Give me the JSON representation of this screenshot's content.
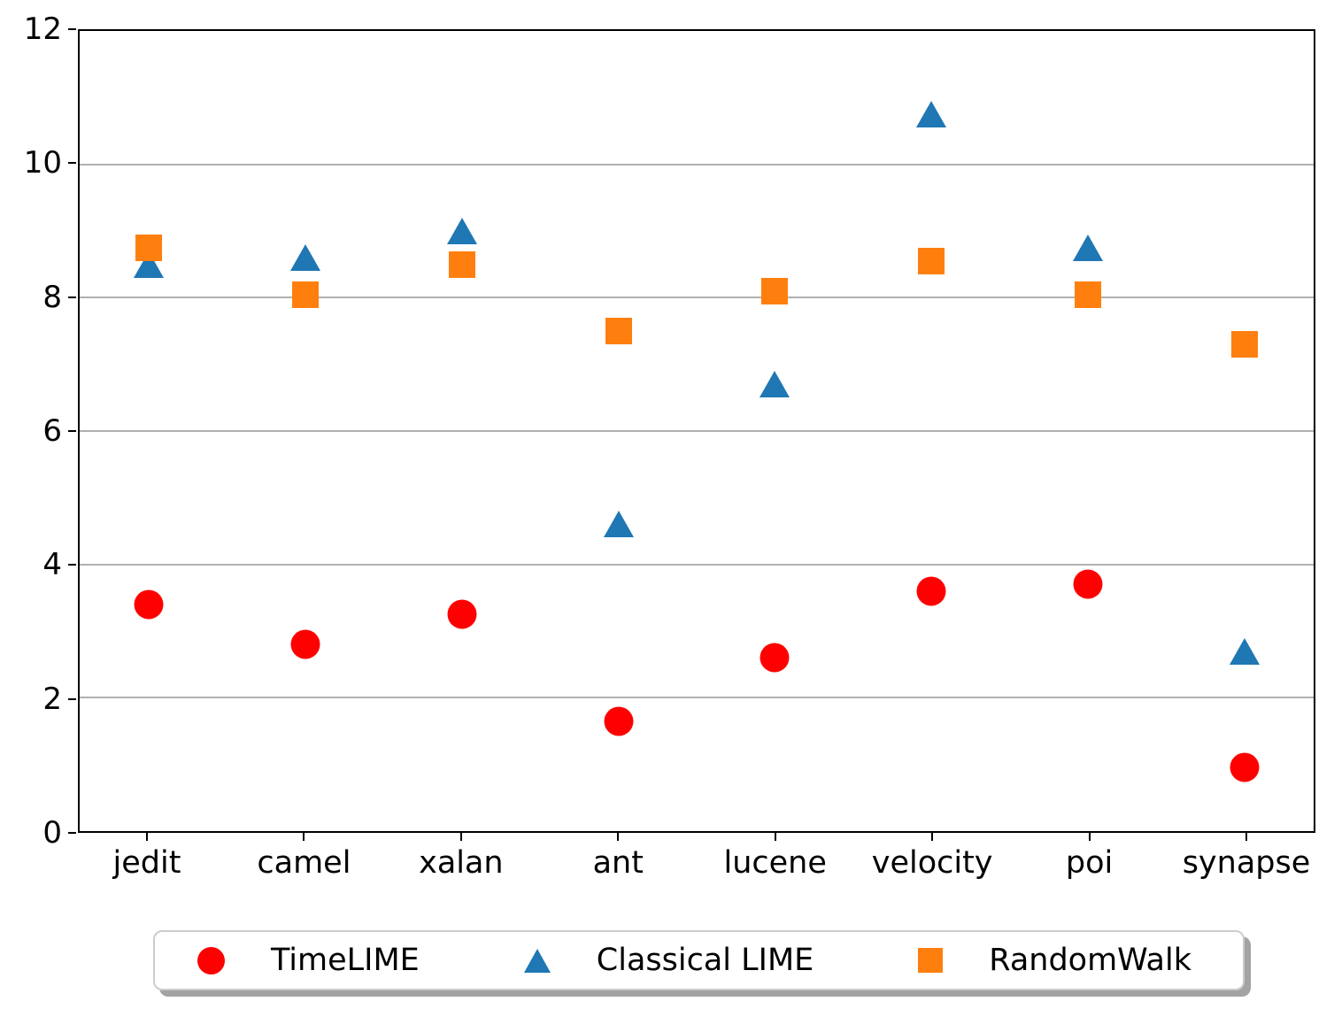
{
  "chart_data": {
    "type": "scatter",
    "title": "",
    "xlabel": "",
    "ylabel": "",
    "categories": [
      "jedit",
      "camel",
      "xalan",
      "ant",
      "lucene",
      "velocity",
      "poi",
      "synapse"
    ],
    "series": [
      {
        "name": "TimeLIME",
        "marker": "circle",
        "color": "#ff0000",
        "values": [
          3.4,
          2.8,
          3.25,
          1.65,
          2.6,
          3.6,
          3.7,
          0.95
        ]
      },
      {
        "name": "Classical LIME",
        "marker": "triangle",
        "color": "#1f77b4",
        "values": [
          8.5,
          8.6,
          9.0,
          4.6,
          6.7,
          10.75,
          8.75,
          2.7
        ]
      },
      {
        "name": "RandomWalk",
        "marker": "square",
        "color": "#ff7f0e",
        "values": [
          8.75,
          8.05,
          8.5,
          7.5,
          8.1,
          8.55,
          8.05,
          7.3
        ]
      }
    ],
    "ylim": [
      0,
      12
    ],
    "yticks": [
      "0",
      "2",
      "4",
      "6",
      "8",
      "10",
      "12"
    ],
    "grid": "horizontal-only",
    "grid_color": "#b0b0b0",
    "legend_position": "bottom-center",
    "legend_labels": [
      "TimeLIME",
      "Classical LIME",
      "RandomWalk"
    ]
  }
}
